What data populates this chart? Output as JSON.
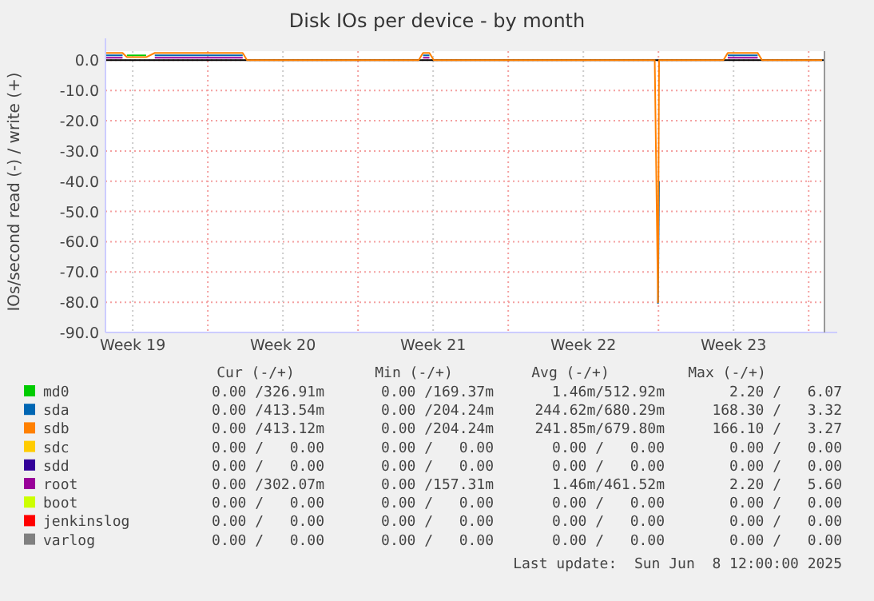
{
  "chart_data": {
    "type": "line",
    "title": "Disk IOs per device - by month",
    "ylabel": "IOs/second read (-) / write (+)",
    "x": [
      "2025-05-07T05:30",
      "2025-05-08T00:40",
      "2025-05-08T05:30",
      "2025-05-09T03:00",
      "2025-05-09T12:40",
      "2025-05-13T15:00",
      "2025-05-13T19:50",
      "2025-05-21T19:50",
      "2025-05-22T00:40",
      "2025-05-22T07:50",
      "2025-05-22T12:40",
      "2025-06-01T19:50",
      "2025-06-01T23:30",
      "2025-06-02T00:40",
      "2025-06-02T04:20",
      "2025-06-05T00:40",
      "2025-06-05T05:30",
      "2025-06-06T15:00",
      "2025-06-06T19:50",
      "2025-06-09T15:00"
    ],
    "xlim": [
      "2025-05-07T05:30",
      "2025-06-09T17:40"
    ],
    "xticks": [
      {
        "value": "2025-05-08T12:00",
        "label": "Week 19"
      },
      {
        "value": "2025-05-12",
        "label": null
      },
      {
        "value": "2025-05-15T12:00",
        "label": "Week 20"
      },
      {
        "value": "2025-05-19",
        "label": null
      },
      {
        "value": "2025-05-22T12:00",
        "label": "Week 21"
      },
      {
        "value": "2025-05-26",
        "label": null
      },
      {
        "value": "2025-05-29T12:00",
        "label": "Week 22"
      },
      {
        "value": "2025-06-02",
        "label": null
      },
      {
        "value": "2025-06-05T12:00",
        "label": "Week 23"
      },
      {
        "value": "2025-06-09",
        "label": null
      }
    ],
    "ylim": [
      -90,
      3
    ],
    "yticks": [
      {
        "value": 0,
        "label": "0.0"
      },
      {
        "value": -10,
        "label": "-10.0"
      },
      {
        "value": -20,
        "label": "-20.0"
      },
      {
        "value": -30,
        "label": "-30.0"
      },
      {
        "value": -40,
        "label": "-40.0"
      },
      {
        "value": -50,
        "label": "-50.0"
      },
      {
        "value": -60,
        "label": "-60.0"
      },
      {
        "value": -70,
        "label": "-70.0"
      },
      {
        "value": -80,
        "label": "-80.0"
      },
      {
        "value": -90,
        "label": "-90.0"
      }
    ],
    "grid": true,
    "legend": "bottom",
    "marker": "none",
    "ref_lines": [
      {
        "axis": "y",
        "value": 0,
        "color": "#000000"
      }
    ],
    "series": [
      {
        "name": "md0",
        "color": "#00cc00",
        "values": [
          null,
          null,
          1.6,
          1.6,
          null,
          null,
          null,
          null,
          null,
          null,
          null,
          null,
          null,
          null,
          null,
          null,
          null,
          null,
          null,
          null
        ]
      },
      {
        "name": "sda",
        "color": "#0066b3",
        "values": [
          1.6,
          1.6,
          null,
          null,
          1.6,
          1.6,
          null,
          null,
          1.6,
          1.6,
          null,
          null,
          -80.5,
          -40,
          null,
          null,
          1.6,
          1.6,
          null,
          null
        ]
      },
      {
        "name": "sdb",
        "color": "#ff8000",
        "values": [
          2.4,
          2.4,
          1.0,
          1.0,
          2.4,
          2.4,
          0,
          0,
          2.4,
          2.4,
          0,
          0,
          -80,
          0,
          0,
          0,
          2.4,
          2.4,
          0,
          0
        ]
      },
      {
        "name": "sdc",
        "color": "#ffcc00",
        "values": [
          null,
          null,
          null,
          null,
          null,
          null,
          null,
          null,
          null,
          null,
          null,
          null,
          null,
          null,
          null,
          null,
          null,
          null,
          null,
          null
        ]
      },
      {
        "name": "sdd",
        "color": "#330099",
        "values": [
          null,
          null,
          null,
          null,
          null,
          null,
          null,
          null,
          null,
          null,
          null,
          null,
          null,
          null,
          null,
          null,
          null,
          null,
          null,
          null
        ]
      },
      {
        "name": "root",
        "color": "#990099",
        "values": [
          0.8,
          0.8,
          null,
          null,
          0.8,
          0.8,
          null,
          null,
          0.8,
          0.8,
          null,
          null,
          null,
          null,
          null,
          null,
          0.8,
          0.8,
          null,
          null
        ]
      },
      {
        "name": "boot",
        "color": "#ccff00",
        "values": [
          null,
          null,
          null,
          null,
          null,
          null,
          null,
          null,
          null,
          null,
          null,
          null,
          null,
          null,
          null,
          null,
          null,
          null,
          null,
          null
        ]
      },
      {
        "name": "jenkinslog",
        "color": "#ff0000",
        "values": [
          null,
          null,
          null,
          null,
          null,
          null,
          null,
          null,
          null,
          null,
          null,
          null,
          null,
          null,
          null,
          null,
          null,
          null,
          null,
          null
        ]
      },
      {
        "name": "varlog",
        "color": "#808080",
        "values": [
          null,
          null,
          null,
          null,
          null,
          null,
          null,
          null,
          null,
          null,
          null,
          null,
          null,
          null,
          null,
          null,
          null,
          null,
          null,
          null
        ]
      }
    ],
    "annotations": [
      "Cur (-/+)",
      "Min (-/+)",
      "Avg (-/+)",
      "Max (-/+)",
      "0.00 /326.91m",
      "0.00 /169.37m",
      "1.46m/512.92m",
      "2.20 /   6.07",
      "0.00 /413.54m",
      "0.00 /204.24m",
      "244.62m/680.29m",
      "168.30 /   3.32",
      "0.00 /413.12m",
      "0.00 /204.24m",
      "241.85m/679.80m",
      "166.10 /   3.27",
      "0.00 /   0.00",
      "0.00 /   0.00",
      "0.00 /   0.00",
      "0.00 /   0.00",
      "0.00 /   0.00",
      "0.00 /   0.00",
      "0.00 /   0.00",
      "0.00 /   0.00",
      "0.00 /302.07m",
      "0.00 /157.31m",
      "1.46m/461.52m",
      "2.20 /   5.60",
      "0.00 /   0.00",
      "0.00 /   0.00",
      "0.00 /   0.00",
      "0.00 /   0.00",
      "0.00 /   0.00",
      "0.00 /   0.00",
      "0.00 /   0.00",
      "0.00 /   0.00",
      "0.00 /   0.00",
      "0.00 /   0.00",
      "0.00 /   0.00",
      "0.00 /   0.00",
      "Last update:  Sun Jun  8 12:00:00 2025"
    ]
  }
}
